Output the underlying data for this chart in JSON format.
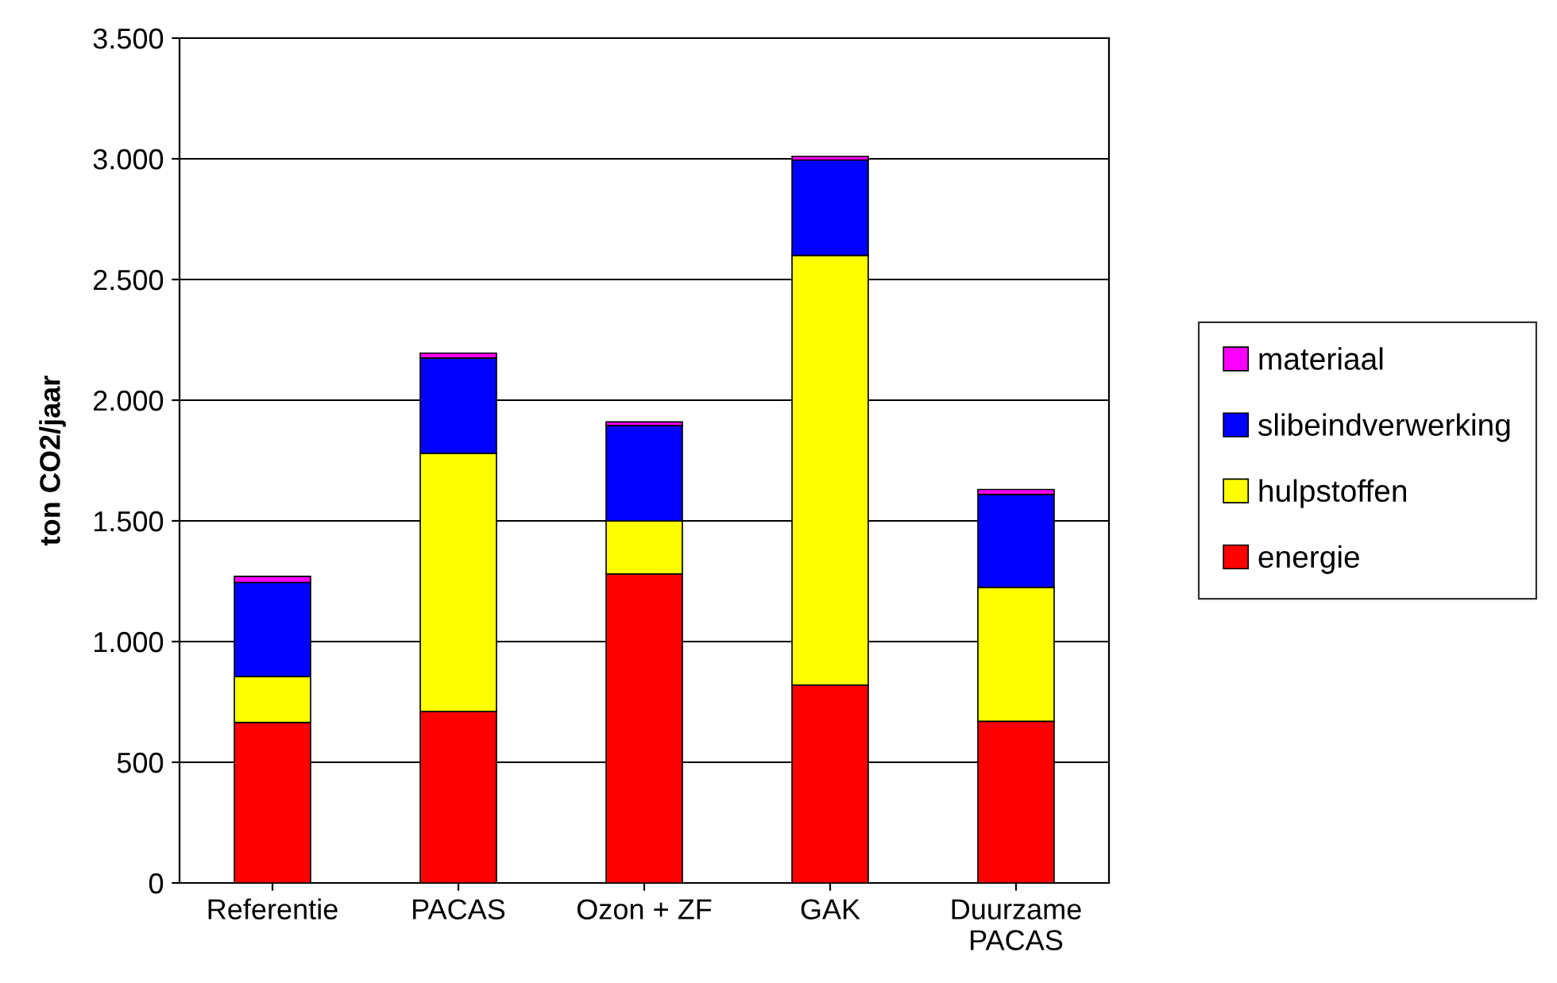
{
  "chart_data": {
    "type": "bar",
    "stacked": true,
    "ylabel": "ton CO2/jaar",
    "categories": [
      "Referentie",
      "PACAS",
      "Ozon + ZF",
      "GAK",
      "Duurzame\nPACAS"
    ],
    "series": [
      {
        "name": "energie",
        "color": "#ff0000",
        "values": [
          665,
          710,
          1280,
          820,
          670
        ]
      },
      {
        "name": "hulpstoffen",
        "color": "#ffff00",
        "values": [
          190,
          1070,
          220,
          1780,
          555
        ]
      },
      {
        "name": "slibeindverwerking",
        "color": "#0000ff",
        "values": [
          390,
          395,
          395,
          395,
          385
        ]
      },
      {
        "name": "materiaal",
        "color": "#ff00ff",
        "values": [
          25,
          20,
          15,
          15,
          20
        ]
      }
    ],
    "ylim": [
      0,
      3500
    ],
    "yticks": [
      {
        "value": 0,
        "label": "0"
      },
      {
        "value": 500,
        "label": "500"
      },
      {
        "value": 1000,
        "label": "1.000"
      },
      {
        "value": 1500,
        "label": "1.500"
      },
      {
        "value": 2000,
        "label": "2.000"
      },
      {
        "value": 2500,
        "label": "2.500"
      },
      {
        "value": 3000,
        "label": "3.000"
      },
      {
        "value": 3500,
        "label": "3.500"
      }
    ],
    "grid": "y",
    "legend": "right"
  }
}
